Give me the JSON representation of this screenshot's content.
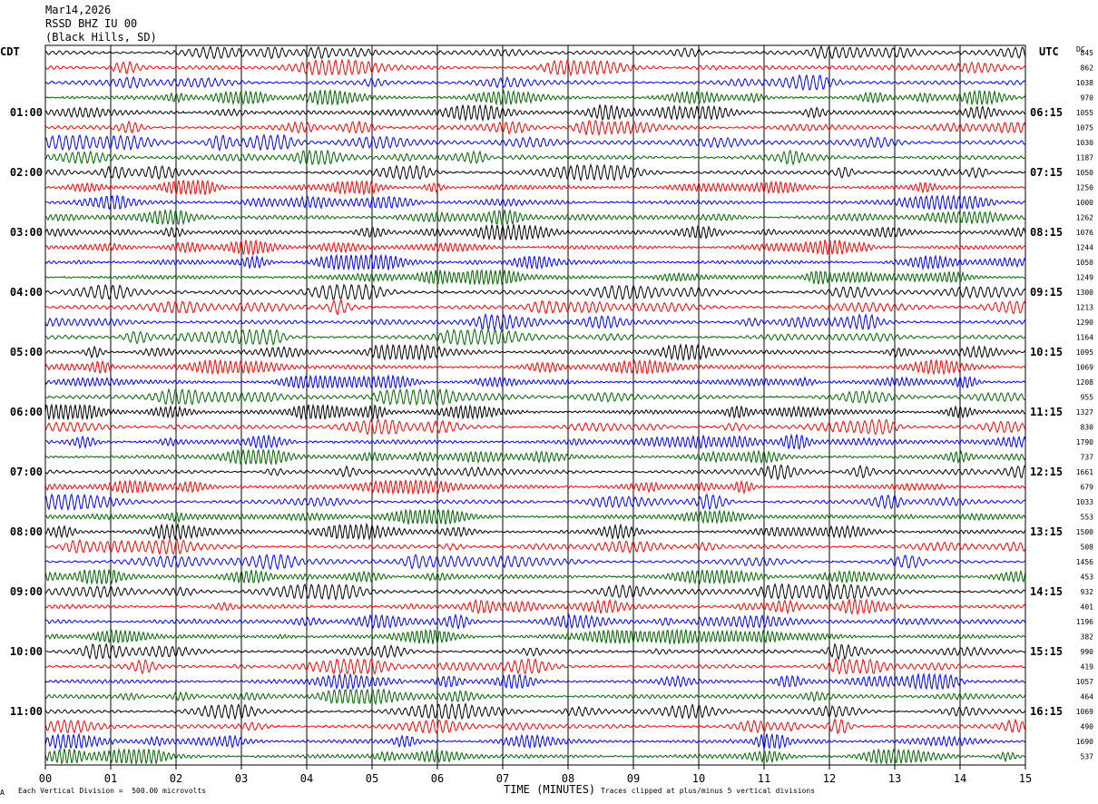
{
  "header": {
    "date": "Mar14,2026",
    "station": "RSSD BHZ IU 00",
    "location": "(Black Hills, SD)"
  },
  "left_tz": "CDT",
  "right_tz": "UTC",
  "dc_label": "DC",
  "footer": {
    "left_note": "Each Vertical Division =  500.00 microvolts",
    "right_note": "Traces clipped at plus/minus 5 vertical divisions",
    "corner_mark": "A"
  },
  "chart_data": {
    "type": "line",
    "title": "",
    "xlabel": "TIME (MINUTES)",
    "ylabel": "",
    "xlim": [
      0,
      15
    ],
    "x_ticks": [
      "00",
      "01",
      "02",
      "03",
      "04",
      "05",
      "06",
      "07",
      "08",
      "09",
      "10",
      "11",
      "12",
      "13",
      "14",
      "15"
    ],
    "left_time_labels": [
      "01:00",
      "02:00",
      "03:00",
      "04:00",
      "05:00",
      "06:00",
      "07:00",
      "08:00",
      "09:00",
      "10:00",
      "11:00"
    ],
    "right_time_labels": [
      "06:15",
      "07:15",
      "08:15",
      "09:15",
      "10:15",
      "11:15",
      "12:15",
      "13:15",
      "14:15",
      "15:15",
      "16:15"
    ],
    "trace_colors": [
      "#000000",
      "#ff0000",
      "#0000ff",
      "#006400"
    ],
    "grid": true,
    "trace_count": 48,
    "dc_offsets": [
      "845",
      "862",
      "1038",
      "970",
      "1055",
      "1075",
      "1030",
      "1187",
      "1050",
      "1250",
      "1000",
      "1262",
      "1076",
      "1244",
      "1050",
      "1249",
      "1300",
      "1213",
      "1290",
      "1164",
      "1095",
      "1069",
      "1208",
      "955",
      "1327",
      "830",
      "1790",
      "737",
      "1661",
      "679",
      "1033",
      "553",
      "1500",
      "508",
      "1456",
      "453",
      "932",
      "401",
      "1196",
      "382",
      "990",
      "419",
      "1057",
      "464",
      "1069",
      "490",
      "1690",
      "537"
    ]
  }
}
